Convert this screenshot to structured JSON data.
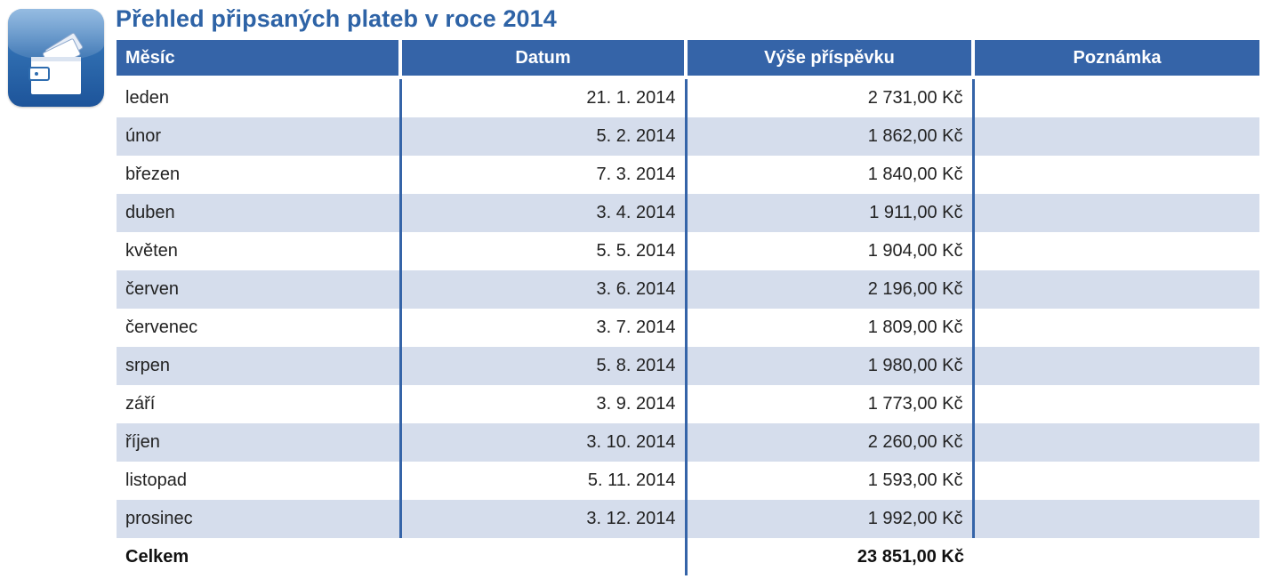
{
  "title": "Přehled připsaných plateb v roce 2014",
  "icon": {
    "name": "wallet-icon",
    "accent": "#2f6db0"
  },
  "colors": {
    "header": "#3564a8",
    "stripe": "#d5ddec",
    "title": "#2e63a6"
  },
  "table": {
    "headers": [
      "Měsíc",
      "Datum",
      "Výše příspěvku",
      "Poznámka"
    ],
    "rows": [
      {
        "month": "leden",
        "date": "21. 1. 2014",
        "amount": "2 731,00 Kč",
        "note": ""
      },
      {
        "month": "únor",
        "date": "5. 2. 2014",
        "amount": "1 862,00 Kč",
        "note": ""
      },
      {
        "month": "březen",
        "date": "7. 3. 2014",
        "amount": "1 840,00 Kč",
        "note": ""
      },
      {
        "month": "duben",
        "date": "3. 4. 2014",
        "amount": "1 911,00 Kč",
        "note": ""
      },
      {
        "month": "květen",
        "date": "5. 5. 2014",
        "amount": "1 904,00 Kč",
        "note": ""
      },
      {
        "month": "červen",
        "date": "3. 6. 2014",
        "amount": "2 196,00 Kč",
        "note": ""
      },
      {
        "month": "červenec",
        "date": "3. 7. 2014",
        "amount": "1 809,00 Kč",
        "note": ""
      },
      {
        "month": "srpen",
        "date": "5. 8. 2014",
        "amount": "1 980,00 Kč",
        "note": ""
      },
      {
        "month": "září",
        "date": "3. 9. 2014",
        "amount": "1 773,00 Kč",
        "note": ""
      },
      {
        "month": "říjen",
        "date": "3. 10. 2014",
        "amount": "2 260,00 Kč",
        "note": ""
      },
      {
        "month": "listopad",
        "date": "5. 11. 2014",
        "amount": "1 593,00 Kč",
        "note": ""
      },
      {
        "month": "prosinec",
        "date": "3. 12. 2014",
        "amount": "1 992,00 Kč",
        "note": ""
      }
    ],
    "total": {
      "label": "Celkem",
      "amount": "23 851,00 Kč"
    }
  }
}
